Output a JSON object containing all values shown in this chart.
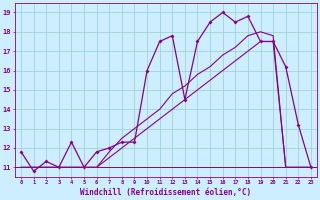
{
  "xlabel": "Windchill (Refroidissement éolien,°C)",
  "bg_color": "#cceeff",
  "grid_color": "#99cccc",
  "line_color": "#880088",
  "x_values": [
    0,
    1,
    2,
    3,
    4,
    5,
    6,
    7,
    8,
    9,
    10,
    11,
    12,
    13,
    14,
    15,
    16,
    17,
    18,
    19,
    20,
    21,
    22,
    23
  ],
  "temp_line": [
    11.8,
    10.8,
    11.3,
    11.0,
    12.3,
    11.0,
    11.8,
    12.0,
    12.3,
    12.3,
    16.0,
    17.5,
    17.8,
    14.5,
    17.5,
    18.5,
    19.0,
    18.5,
    18.8,
    17.5,
    17.5,
    16.2,
    13.2,
    11.0
  ],
  "wc_line1": [
    11.0,
    11.0,
    11.0,
    11.0,
    11.0,
    11.0,
    11.0,
    11.5,
    12.0,
    12.5,
    13.0,
    13.5,
    14.0,
    14.5,
    15.0,
    15.5,
    16.0,
    16.5,
    17.0,
    17.5,
    17.5,
    11.0,
    11.0,
    11.0
  ],
  "wc_line2": [
    11.0,
    11.0,
    11.0,
    11.0,
    11.0,
    11.0,
    11.0,
    11.8,
    12.5,
    13.0,
    13.5,
    14.0,
    14.8,
    15.2,
    15.8,
    16.2,
    16.8,
    17.2,
    17.8,
    18.0,
    17.8,
    11.0,
    11.0,
    11.0
  ],
  "ylim_min": 10.5,
  "ylim_max": 19.5,
  "yticks": [
    11,
    12,
    13,
    14,
    15,
    16,
    17,
    18,
    19
  ],
  "marker_indices": [
    0,
    1,
    2,
    3,
    4,
    5,
    6,
    7,
    8,
    9,
    10,
    11,
    12,
    13,
    14,
    15,
    16,
    17,
    18,
    19,
    20,
    21,
    22,
    23
  ]
}
